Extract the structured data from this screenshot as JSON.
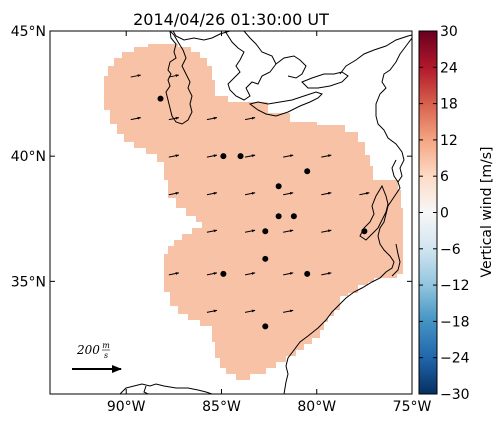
{
  "title": "2014/04/26 01:30:00 UT",
  "map": {
    "lon_range": [
      -94,
      -75
    ],
    "lat_range": [
      30.5,
      45
    ],
    "x_ticks": [
      {
        "lon": -90,
        "label": "90°W"
      },
      {
        "lon": -85,
        "label": "85°W"
      },
      {
        "lon": -80,
        "label": "80°W"
      },
      {
        "lon": -75,
        "label": "75°W"
      }
    ],
    "y_ticks": [
      {
        "lat": 45,
        "label": "45°N"
      },
      {
        "lat": 40,
        "label": "40°N"
      },
      {
        "lat": 35,
        "label": "35°N"
      }
    ],
    "coverage_color": "#f7c2a6",
    "coastline_color": "#000000"
  },
  "colorbar": {
    "label": "Vertical wind [m/s]",
    "min": -30,
    "max": 30,
    "ticks": [
      "30",
      "24",
      "18",
      "12",
      "6",
      "0",
      "−6",
      "−12",
      "−18",
      "−24",
      "−30"
    ],
    "colormap": [
      "#053061",
      "#2166ac",
      "#4393c3",
      "#92c5de",
      "#d1e5f0",
      "#f7f7f7",
      "#fddbc7",
      "#f4a582",
      "#d6604d",
      "#b2182b",
      "#67001f"
    ]
  },
  "scale_arrow": {
    "value": "200",
    "num": "m",
    "den": "s"
  },
  "stations": [
    {
      "lon": -88.2,
      "lat": 42.3
    },
    {
      "lon": -84.9,
      "lat": 40.0
    },
    {
      "lon": -84.0,
      "lat": 40.0
    },
    {
      "lon": -82.0,
      "lat": 38.8
    },
    {
      "lon": -80.5,
      "lat": 39.4
    },
    {
      "lon": -82.0,
      "lat": 37.6
    },
    {
      "lon": -81.2,
      "lat": 37.6
    },
    {
      "lon": -82.7,
      "lat": 37.0
    },
    {
      "lon": -77.5,
      "lat": 37.0
    },
    {
      "lon": -82.7,
      "lat": 35.9
    },
    {
      "lon": -84.9,
      "lat": 35.3
    },
    {
      "lon": -80.5,
      "lat": 35.3
    },
    {
      "lon": -82.7,
      "lat": 33.2
    }
  ],
  "wind_vectors": [
    {
      "lon": -89.5,
      "lat": 43.2
    },
    {
      "lon": -87.5,
      "lat": 43.2
    },
    {
      "lon": -89.5,
      "lat": 41.5
    },
    {
      "lon": -87.5,
      "lat": 41.5
    },
    {
      "lon": -85.5,
      "lat": 41.5
    },
    {
      "lon": -83.5,
      "lat": 41.5
    },
    {
      "lon": -87.5,
      "lat": 40.0
    },
    {
      "lon": -85.5,
      "lat": 40.0
    },
    {
      "lon": -83.5,
      "lat": 40.0
    },
    {
      "lon": -81.5,
      "lat": 40.0
    },
    {
      "lon": -79.5,
      "lat": 40.0
    },
    {
      "lon": -87.5,
      "lat": 38.5
    },
    {
      "lon": -85.5,
      "lat": 38.5
    },
    {
      "lon": -83.5,
      "lat": 38.5
    },
    {
      "lon": -81.5,
      "lat": 38.5
    },
    {
      "lon": -79.5,
      "lat": 38.5
    },
    {
      "lon": -77.5,
      "lat": 38.5
    },
    {
      "lon": -85.5,
      "lat": 37.0
    },
    {
      "lon": -83.5,
      "lat": 37.0
    },
    {
      "lon": -81.5,
      "lat": 37.0
    },
    {
      "lon": -79.5,
      "lat": 37.0
    },
    {
      "lon": -87.5,
      "lat": 35.3
    },
    {
      "lon": -85.5,
      "lat": 35.3
    },
    {
      "lon": -83.5,
      "lat": 35.3
    },
    {
      "lon": -81.5,
      "lat": 35.3
    },
    {
      "lon": -79.5,
      "lat": 35.3
    },
    {
      "lon": -85.5,
      "lat": 33.8
    },
    {
      "lon": -83.5,
      "lat": 33.8
    },
    {
      "lon": -81.5,
      "lat": 33.8
    }
  ]
}
